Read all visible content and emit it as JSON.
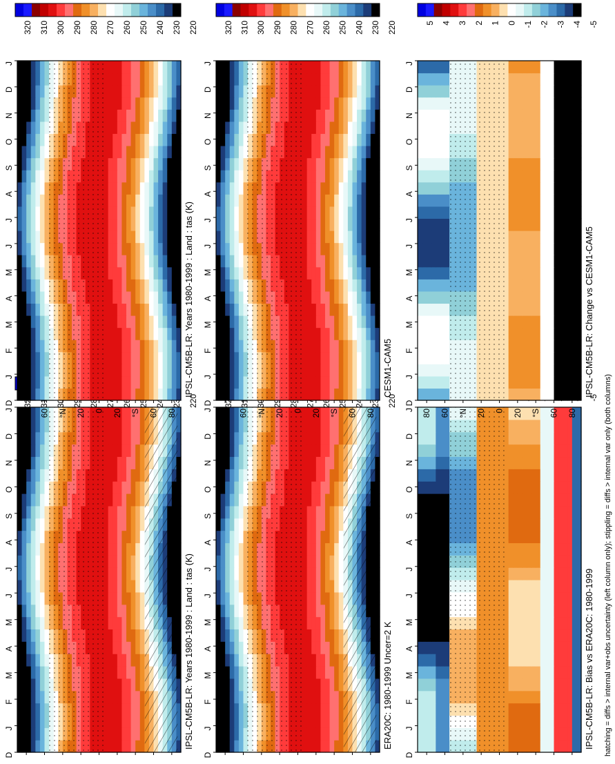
{
  "figure_note": "hatching = diffs > internal var+obs uncertainty (left column only); stippling = diffs > internal var only (both columns)",
  "abs_colorbar": {
    "ticks": [
      "320",
      "310",
      "300",
      "290",
      "280",
      "270",
      "260",
      "250",
      "240",
      "230",
      "220"
    ],
    "colors": [
      "#0000e0",
      "#1a1aff",
      "#8b0000",
      "#c00000",
      "#e01010",
      "#ff3b3b",
      "#ff7070",
      "#e06a10",
      "#f0902a",
      "#f8b060",
      "#fde0b0",
      "#ffffff",
      "#e8f8f8",
      "#c0ecec",
      "#90d0d8",
      "#6ab4dc",
      "#4a8ec8",
      "#2c6aa8",
      "#1c3c78",
      "#000000"
    ]
  },
  "diff_colorbar": {
    "ticks": [
      "5",
      "4",
      "3",
      "2",
      "1",
      "0",
      "-1",
      "-2",
      "-3",
      "-4",
      "-5"
    ],
    "colors": [
      "#0000e0",
      "#1a1aff",
      "#8b0000",
      "#c00000",
      "#e01010",
      "#ff3b3b",
      "#ff7070",
      "#e06a10",
      "#f0902a",
      "#f8b060",
      "#fde0b0",
      "#ffffff",
      "#e8f8f8",
      "#c0ecec",
      "#90d0d8",
      "#6ab4dc",
      "#4a8ec8",
      "#2c6aa8",
      "#1c3c78",
      "#000000"
    ]
  },
  "month_labels": [
    "D",
    "J",
    "F",
    "M",
    "A",
    "M",
    "J",
    "J",
    "A",
    "S",
    "O",
    "N",
    "D",
    "J"
  ],
  "lat_labels": [
    "80",
    "60",
    "°N",
    "20",
    "0",
    "20",
    "°S",
    "60",
    "80"
  ],
  "chart_data": [
    {
      "type": "heatmap",
      "title": "IPSL-CM5B-LR: Years 1980-1999 : Land : tas (K)",
      "kind": "abs",
      "season_lag": 0,
      "colorbar": "abs"
    },
    {
      "type": "heatmap",
      "title": "ERA20C: 1980-1999 Uncer=2 K",
      "kind": "abs",
      "season_lag": 0,
      "colorbar": "abs"
    },
    {
      "type": "heatmap",
      "title": "IPSL-CM5B-LR: Bias vs ERA20C: 1980-1999",
      "kind": "bias",
      "colorbar": "diff"
    },
    {
      "type": "heatmap",
      "title": "IPSL-CM5B-LR: Years 1980-1999 : Land : tas (K)",
      "kind": "abs",
      "season_lag": 0,
      "colorbar": "abs"
    },
    {
      "type": "heatmap",
      "title": "CESM1-CAM5",
      "kind": "abs",
      "season_lag": 0,
      "colorbar": "abs"
    },
    {
      "type": "heatmap",
      "title": "IPSL-CM5B-LR: Change vs CESM1-CAM5",
      "kind": "change",
      "colorbar": "diff"
    }
  ]
}
